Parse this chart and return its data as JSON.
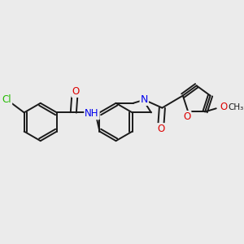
{
  "background_color": "#ebebeb",
  "bond_color": "#1a1a1a",
  "bond_width": 1.4,
  "atom_colors": {
    "N": "#0000ee",
    "O": "#dd0000",
    "Cl": "#22bb00",
    "H": "#1a1a1a"
  },
  "figsize": [
    3.0,
    3.0
  ],
  "dpi": 100,
  "xlim": [
    0,
    10
  ],
  "ylim": [
    0,
    10
  ]
}
